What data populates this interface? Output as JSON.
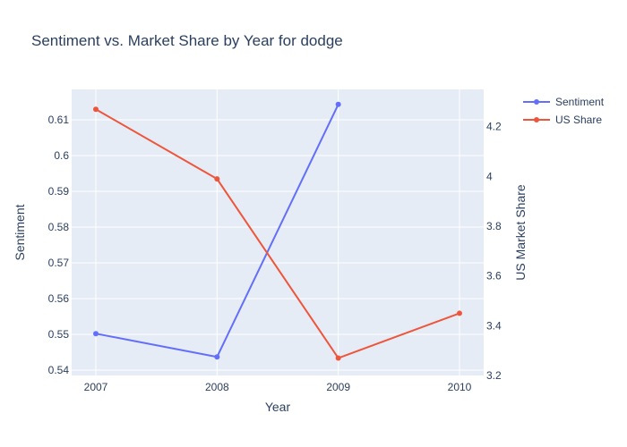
{
  "chart_data": {
    "type": "line",
    "title": "Sentiment vs. Market Share by Year for dodge",
    "xlabel": "Year",
    "ylabel": "Sentiment",
    "y2label": "US Market Share",
    "categories": [
      "2007",
      "2008",
      "2009",
      "2010"
    ],
    "x": [
      2007,
      2008,
      2009,
      2010
    ],
    "y_ticks": [
      "0.54",
      "0.55",
      "0.56",
      "0.57",
      "0.58",
      "0.59",
      "0.6",
      "0.61"
    ],
    "y2_ticks": [
      "3.2",
      "3.4",
      "3.6",
      "3.8",
      "4",
      "4.2"
    ],
    "ylim": [
      0.5385,
      0.6185
    ],
    "y2lim": [
      3.2,
      4.35
    ],
    "grid": true,
    "legend_position": "top-right",
    "series": [
      {
        "name": "Sentiment",
        "axis": "y",
        "color": "#636efa",
        "values": [
          0.5502,
          0.5437,
          0.6143,
          null
        ]
      },
      {
        "name": "US Share",
        "axis": "y2",
        "color": "#ef553b",
        "values": [
          4.27,
          3.99,
          3.27,
          3.45
        ]
      }
    ]
  }
}
